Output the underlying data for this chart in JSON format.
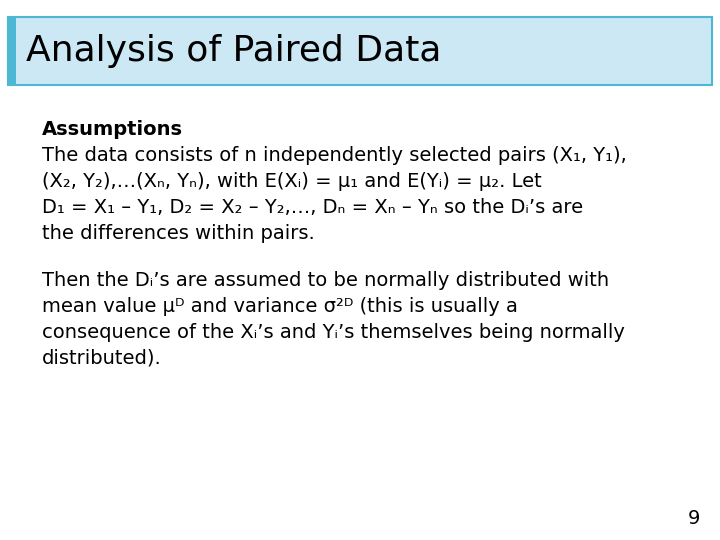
{
  "title": "Analysis of Paired Data",
  "title_fontsize": 26,
  "title_bg_color": "#cce8f4",
  "title_border_color": "#4db8d4",
  "background_color": "#ffffff",
  "page_number": "9",
  "body_fontsize": 14.0,
  "page_num_fontsize": 14,
  "assumptions_bold": "Assumptions",
  "para1_lines": [
    "The data consists of n independently selected pairs (X₁, Y₁),",
    "(X₂, Y₂),…(Xₙ, Yₙ), with E(Xᵢ) = μ₁ and E(Yᵢ) = μ₂. Let",
    "D₁ = X₁ – Y₁, D₂ = X₂ – Y₂,…, Dₙ = Xₙ – Yₙ so the Dᵢ’s are",
    "the differences within pairs."
  ],
  "para2_lines": [
    "Then the Dᵢ’s are assumed to be normally distributed with",
    "mean value μᴰ and variance σ²ᴰ (this is usually a",
    "consequence of the Xᵢ’s and Yᵢ’s themselves being normally",
    "distributed)."
  ]
}
